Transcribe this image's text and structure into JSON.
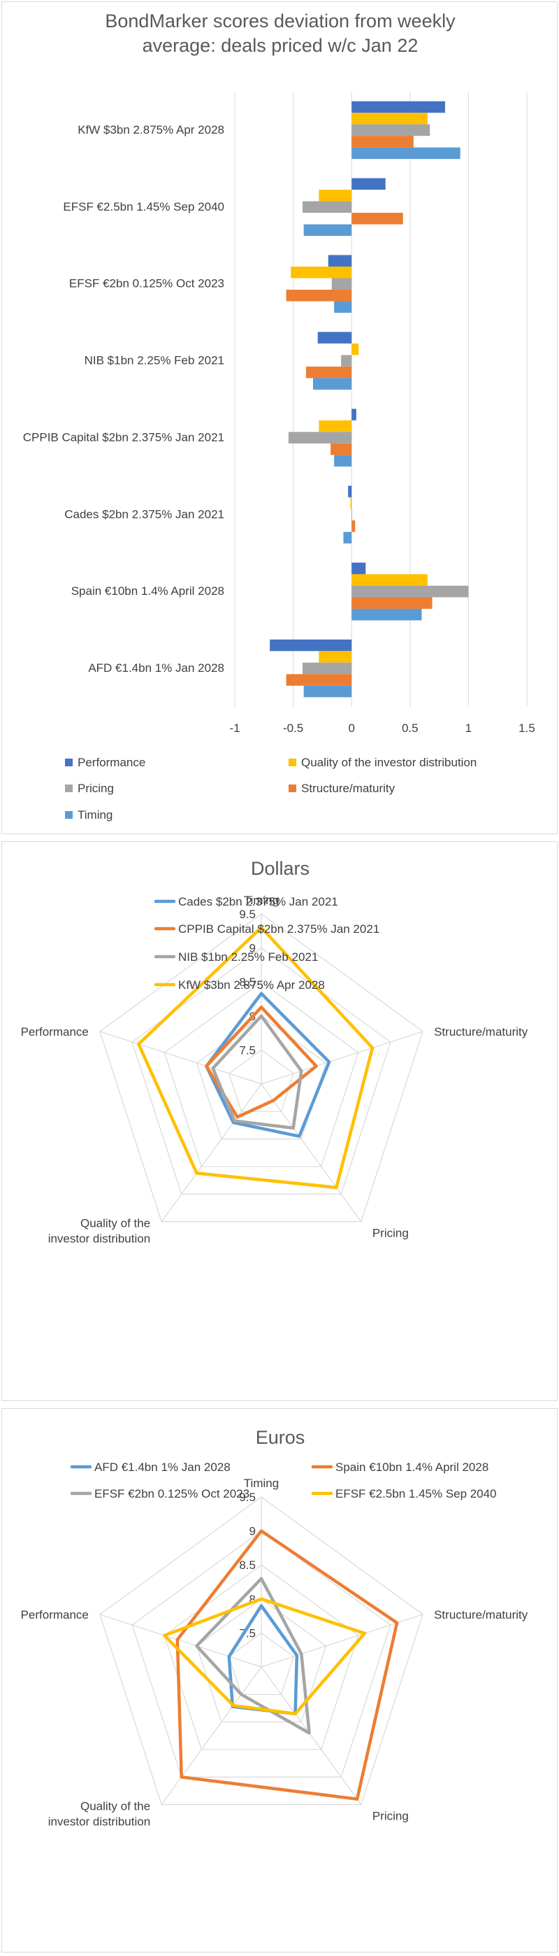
{
  "chart_data": [
    {
      "type": "bar",
      "orientation": "horizontal",
      "title": "BondMarker scores deviation from weekly average: deals priced w/c Jan 22",
      "title_lines": [
        "BondMarker scores deviation from weekly",
        "average: deals priced w/c Jan 22"
      ],
      "categories": [
        "KfW $3bn 2.875% Apr 2028",
        "EFSF €2.5bn 1.45% Sep 2040",
        "EFSF €2bn 0.125% Oct 2023",
        "NIB $1bn 2.25% Feb 2021",
        "CPPIB Capital $2bn 2.375% Jan 2021",
        "Cades $2bn 2.375% Jan 2021",
        "Spain €10bn 1.4% April 2028",
        "AFD €1.4bn 1% Jan 2028"
      ],
      "series": [
        {
          "name": "Performance",
          "color": "#4472C4",
          "values": [
            0.8,
            0.29,
            -0.2,
            -0.29,
            0.04,
            -0.03,
            0.12,
            -0.7
          ]
        },
        {
          "name": "Quality of the investor distribution",
          "color": "#FFC000",
          "values": [
            0.65,
            -0.28,
            -0.52,
            0.06,
            -0.28,
            -0.01,
            0.65,
            -0.28
          ]
        },
        {
          "name": "Pricing",
          "color": "#A5A5A5",
          "values": [
            0.67,
            -0.42,
            -0.17,
            -0.09,
            -0.54,
            0.0,
            1.0,
            -0.42
          ]
        },
        {
          "name": "Structure/maturity",
          "color": "#ED7D31",
          "values": [
            0.53,
            0.44,
            -0.56,
            -0.39,
            -0.18,
            0.03,
            0.69,
            -0.56
          ]
        },
        {
          "name": "Timing",
          "color": "#5B9BD5",
          "values": [
            0.93,
            -0.41,
            -0.15,
            -0.33,
            -0.15,
            -0.07,
            0.6,
            -0.41
          ]
        }
      ],
      "xlim": [
        -1,
        1.5
      ],
      "xticks": [
        "-1",
        "-0.5",
        "0",
        "0.5",
        "1",
        "1.5"
      ],
      "grid": true,
      "legend_position": "bottom"
    },
    {
      "type": "radar",
      "title": "Dollars",
      "axes": [
        "Timing",
        "Structure/maturity",
        "Pricing",
        "Quality of the investor distribution",
        "Performance"
      ],
      "axis_label_lines": [
        [
          "Timing"
        ],
        [
          "Structure/maturity"
        ],
        [
          "Pricing"
        ],
        [
          "Quality of the",
          "investor distribution"
        ],
        [
          "Performance"
        ]
      ],
      "rlim": [
        7,
        9.5
      ],
      "rticks": [
        "7.5",
        "8",
        "8.5",
        "9",
        "9.5"
      ],
      "series": [
        {
          "name": "Cades $2bn 2.375% Jan 2021",
          "color": "#5B9BD5",
          "values": [
            8.33,
            8.05,
            7.95,
            7.7,
            7.85
          ]
        },
        {
          "name": "CPPIB Capital $2bn 2.375% Jan 2021",
          "color": "#ED7D31",
          "values": [
            8.13,
            7.85,
            7.3,
            7.6,
            7.85
          ]
        },
        {
          "name": "NIB $1bn 2.25% Feb 2021",
          "color": "#A5A5A5",
          "values": [
            8.0,
            7.62,
            7.8,
            7.67,
            7.75
          ]
        },
        {
          "name": "KfW $3bn 2.875% Apr 2028",
          "color": "#FFC000",
          "values": [
            9.3,
            8.72,
            8.88,
            8.62,
            8.9
          ]
        }
      ],
      "legend_position": "top"
    },
    {
      "type": "radar",
      "title": "Euros",
      "axes": [
        "Timing",
        "Structure/maturity",
        "Pricing",
        "Quality of the investor distribution",
        "Performance"
      ],
      "axis_label_lines": [
        [
          "Timing"
        ],
        [
          "Structure/maturity"
        ],
        [
          "Pricing"
        ],
        [
          "Quality of the",
          "investor distribution"
        ],
        [
          "Performance"
        ]
      ],
      "rlim": [
        7,
        9.5
      ],
      "rticks": [
        "7.5",
        "8",
        "8.5",
        "9",
        "9.5"
      ],
      "series": [
        {
          "name": "AFD €1.4bn 1% Jan 2028",
          "color": "#5B9BD5",
          "values": [
            7.9,
            7.55,
            7.85,
            7.72,
            7.5
          ]
        },
        {
          "name": "Spain €10bn 1.4% April 2028",
          "color": "#ED7D31",
          "values": [
            9.0,
            9.1,
            9.4,
            9.0,
            8.3
          ]
        },
        {
          "name": "EFSF €2bn 0.125% Oct 2023",
          "color": "#A5A5A5",
          "values": [
            8.3,
            7.62,
            8.2,
            7.5,
            8.0
          ]
        },
        {
          "name": "EFSF €2.5bn 1.45% Sep 2040",
          "color": "#FFC000",
          "values": [
            8.0,
            8.6,
            7.85,
            7.7,
            8.5
          ]
        }
      ],
      "legend_position": "top"
    }
  ]
}
